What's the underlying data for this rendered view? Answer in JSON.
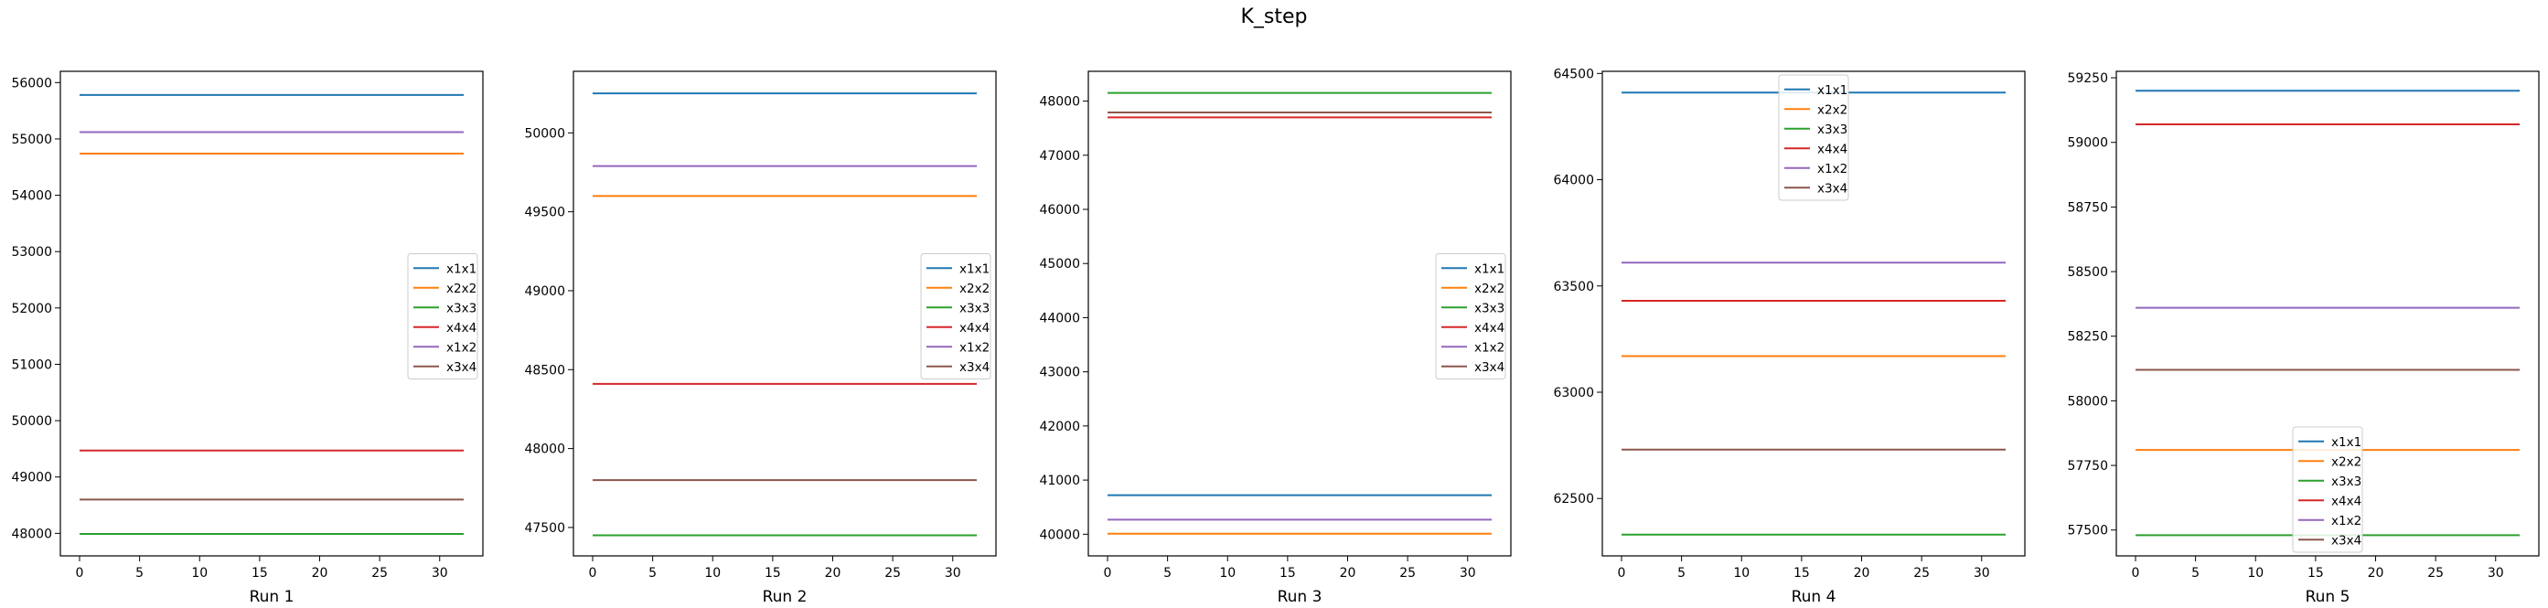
{
  "figure": {
    "title": "K_step"
  },
  "colors": {
    "x1x1": "#1f77b4",
    "x2x2": "#ff7f0e",
    "x3x3": "#2ca02c",
    "x4x4": "#d62728",
    "x1x2": "#9467bd",
    "x3x4": "#8c564b"
  },
  "chart_data": [
    {
      "type": "line",
      "title": "",
      "xlabel": "Run 1",
      "ylabel": "",
      "x": [
        0,
        32
      ],
      "xlim": [
        -1.6,
        33.6
      ],
      "ylim": [
        47600,
        56200
      ],
      "xticks": [
        0,
        5,
        10,
        15,
        20,
        25,
        30
      ],
      "yticks": [
        48000,
        49000,
        50000,
        51000,
        52000,
        53000,
        54000,
        55000,
        56000
      ],
      "legend": "center-right",
      "grid": false,
      "series": [
        {
          "name": "x1x1",
          "values": [
            55780,
            55780
          ]
        },
        {
          "name": "x2x2",
          "values": [
            54740,
            54740
          ]
        },
        {
          "name": "x3x3",
          "values": [
            47990,
            47990
          ]
        },
        {
          "name": "x4x4",
          "values": [
            49470,
            49470
          ]
        },
        {
          "name": "x1x2",
          "values": [
            55120,
            55120
          ]
        },
        {
          "name": "x3x4",
          "values": [
            48600,
            48600
          ]
        }
      ]
    },
    {
      "type": "line",
      "title": "",
      "xlabel": "Run 2",
      "ylabel": "",
      "x": [
        0,
        32
      ],
      "xlim": [
        -1.6,
        33.6
      ],
      "ylim": [
        47320,
        50390
      ],
      "xticks": [
        0,
        5,
        10,
        15,
        20,
        25,
        30
      ],
      "yticks": [
        47500,
        48000,
        48500,
        49000,
        49500,
        50000
      ],
      "legend": "center-right",
      "grid": false,
      "series": [
        {
          "name": "x1x1",
          "values": [
            50250,
            50250
          ]
        },
        {
          "name": "x2x2",
          "values": [
            49600,
            49600
          ]
        },
        {
          "name": "x3x3",
          "values": [
            47450,
            47450
          ]
        },
        {
          "name": "x4x4",
          "values": [
            48410,
            48410
          ]
        },
        {
          "name": "x1x2",
          "values": [
            49790,
            49790
          ]
        },
        {
          "name": "x3x4",
          "values": [
            47800,
            47800
          ]
        }
      ]
    },
    {
      "type": "line",
      "title": "",
      "xlabel": "Run 3",
      "ylabel": "",
      "x": [
        0,
        32
      ],
      "xlim": [
        -1.6,
        33.6
      ],
      "ylim": [
        39600,
        48550
      ],
      "xticks": [
        0,
        5,
        10,
        15,
        20,
        25,
        30
      ],
      "yticks": [
        40000,
        41000,
        42000,
        43000,
        44000,
        45000,
        46000,
        47000,
        48000
      ],
      "legend": "center-right",
      "grid": false,
      "series": [
        {
          "name": "x1x1",
          "values": [
            40720,
            40720
          ]
        },
        {
          "name": "x2x2",
          "values": [
            40010,
            40010
          ]
        },
        {
          "name": "x3x3",
          "values": [
            48150,
            48150
          ]
        },
        {
          "name": "x4x4",
          "values": [
            47700,
            47700
          ]
        },
        {
          "name": "x1x2",
          "values": [
            40270,
            40270
          ]
        },
        {
          "name": "x3x4",
          "values": [
            47790,
            47790
          ]
        }
      ]
    },
    {
      "type": "line",
      "title": "",
      "xlabel": "Run 4",
      "ylabel": "",
      "x": [
        0,
        32
      ],
      "xlim": [
        -1.6,
        33.6
      ],
      "ylim": [
        62230,
        64510
      ],
      "xticks": [
        0,
        5,
        10,
        15,
        20,
        25,
        30
      ],
      "yticks": [
        62500,
        63000,
        63500,
        64000,
        64500
      ],
      "legend": "upper center",
      "grid": false,
      "series": [
        {
          "name": "x1x1",
          "values": [
            64410,
            64410
          ]
        },
        {
          "name": "x2x2",
          "values": [
            63170,
            63170
          ]
        },
        {
          "name": "x3x3",
          "values": [
            62330,
            62330
          ]
        },
        {
          "name": "x4x4",
          "values": [
            63430,
            63430
          ]
        },
        {
          "name": "x1x2",
          "values": [
            63610,
            63610
          ]
        },
        {
          "name": "x3x4",
          "values": [
            62730,
            62730
          ]
        }
      ]
    },
    {
      "type": "line",
      "title": "",
      "xlabel": "Run 5",
      "ylabel": "",
      "x": [
        0,
        32
      ],
      "xlim": [
        -1.6,
        33.6
      ],
      "ylim": [
        57400,
        59275
      ],
      "xticks": [
        0,
        5,
        10,
        15,
        20,
        25,
        30
      ],
      "yticks": [
        57500,
        57750,
        58000,
        58250,
        58500,
        58750,
        59000,
        59250
      ],
      "legend": "lower center",
      "grid": false,
      "series": [
        {
          "name": "x1x1",
          "values": [
            59200,
            59200
          ]
        },
        {
          "name": "x2x2",
          "values": [
            57810,
            57810
          ]
        },
        {
          "name": "x3x3",
          "values": [
            57480,
            57480
          ]
        },
        {
          "name": "x4x4",
          "values": [
            59070,
            59070
          ]
        },
        {
          "name": "x1x2",
          "values": [
            58360,
            58360
          ]
        },
        {
          "name": "x3x4",
          "values": [
            58120,
            58120
          ]
        }
      ]
    }
  ]
}
